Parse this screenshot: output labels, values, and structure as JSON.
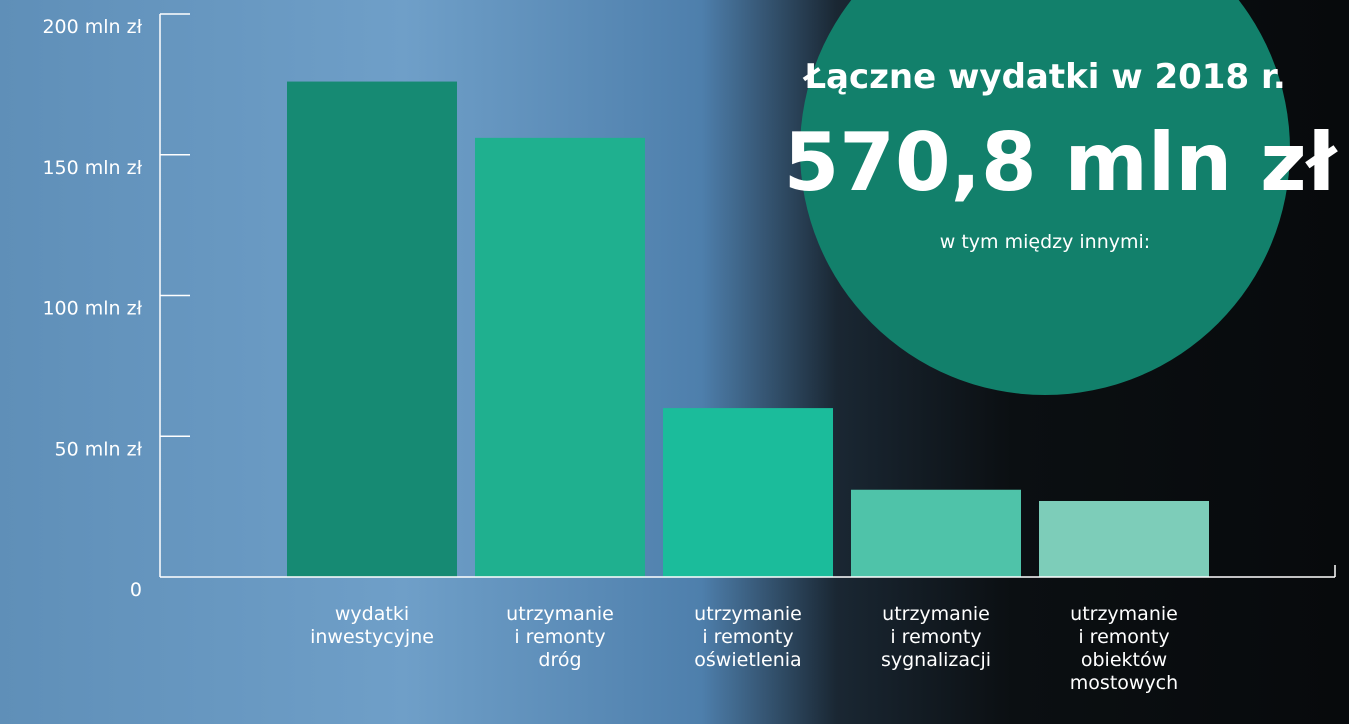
{
  "chart_data": {
    "type": "bar",
    "categories": [
      "wydatki\ninwestycyjne",
      "utrzymanie\ni remonty\ndróg",
      "utrzymanie\ni remonty\noświetlenia",
      "utrzymanie\ni remonty\nsygnalizacji",
      "utrzymanie\ni remonty\nobiektów\nmostowych"
    ],
    "values": [
      176,
      156,
      60,
      31,
      27
    ],
    "colors": [
      "#168a73",
      "#1fb08f",
      "#1bbc9b",
      "#4fc3a9",
      "#7dcdb9"
    ],
    "ylim": [
      0,
      200
    ],
    "yticks": [
      {
        "value": 0,
        "label": "0"
      },
      {
        "value": 50,
        "label": "50 mln zł"
      },
      {
        "value": 100,
        "label": "100 mln zł"
      },
      {
        "value": 150,
        "label": "150 mln zł"
      },
      {
        "value": 200,
        "label": "200 mln zł"
      }
    ],
    "annotation": {
      "title": "Łączne wydatki w 2018 r.",
      "total": "570,8 mln zł",
      "note": "w tym między innymi:"
    }
  }
}
